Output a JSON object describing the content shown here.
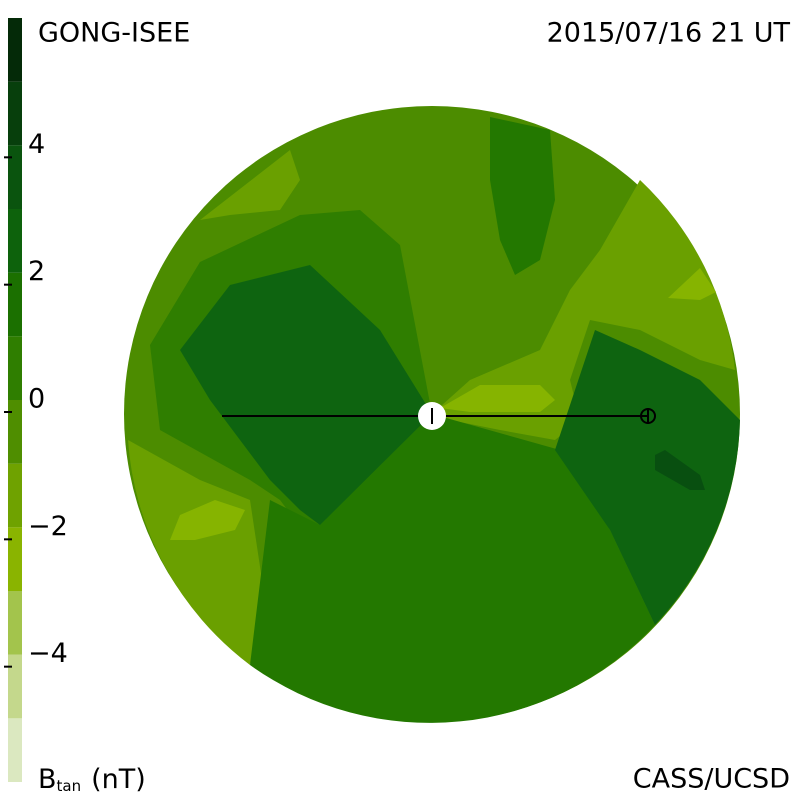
{
  "chart_data": {
    "type": "colorbar",
    "source": "GONG-ISEE",
    "date": "2015/07/16 21 UT",
    "credit": "CASS/UCSD",
    "label": {
      "symbol": "B",
      "subscript": "tan",
      "unit": "(nT)"
    },
    "ylim": [
      -6,
      6
    ],
    "yticks": [
      {
        "value": -4,
        "label": "−4"
      },
      {
        "value": -2,
        "label": "−2"
      },
      0,
      2,
      4
    ],
    "levels": [
      -6,
      -5,
      -4,
      -3,
      -2,
      -1,
      0,
      1,
      2,
      3,
      4,
      5,
      6
    ],
    "colors": [
      "#dbe8c0",
      "#c4d88c",
      "#a3c44c",
      "#8ab400",
      "#6fa200",
      "#4f8e00",
      "#2f7e00",
      "#1b7000",
      "#0d620c",
      "#0a540e",
      "#073f0c",
      "#042a08"
    ]
  }
}
